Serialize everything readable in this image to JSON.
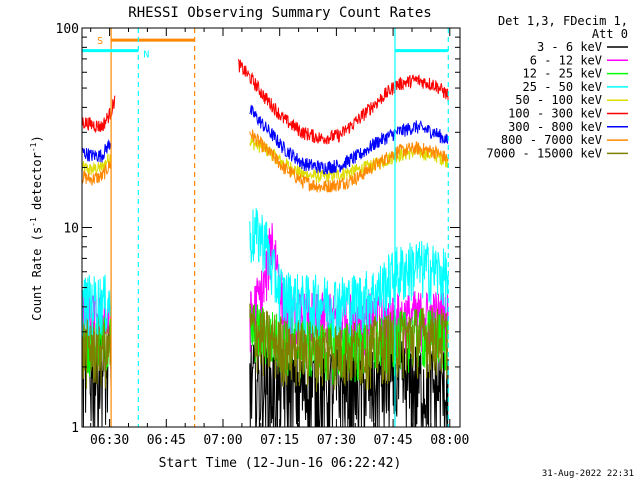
{
  "chart_data": {
    "type": "line",
    "title": "RHESSI Observing Summary Count Rates",
    "xlabel": "Start Time (12-Jun-16 06:22:42)",
    "ylabel": "Count Rate (s⁻¹ detector⁻¹)",
    "ylabel_main": "Count Rate (s",
    "ylabel_sup1": "-1",
    "ylabel_mid": " detector",
    "ylabel_sup2": "-1",
    "ylabel_end": ")",
    "yscale": "log",
    "ylim": [
      1,
      100
    ],
    "xlim_minutes": [
      22.7,
      122.7
    ],
    "x_ticks": [
      {
        "min": 30,
        "label": "06:30"
      },
      {
        "min": 45,
        "label": "06:45"
      },
      {
        "min": 60,
        "label": "07:00"
      },
      {
        "min": 75,
        "label": "07:15"
      },
      {
        "min": 90,
        "label": "07:30"
      },
      {
        "min": 105,
        "label": "07:45"
      },
      {
        "min": 120,
        "label": "08:00"
      }
    ],
    "y_ticks": [
      {
        "value": 1,
        "label": "1"
      },
      {
        "value": 10,
        "label": "10"
      },
      {
        "value": 100,
        "label": "100"
      }
    ],
    "legend_header": [
      "Det 1,3, FDecim 1,",
      "Att 0"
    ],
    "legend_placement": "right",
    "series": [
      {
        "name": "3 - 6 keV",
        "color": "#000000",
        "x": [
          22.7,
          30.4,
          37.6,
          61.6,
          67,
          72,
          76,
          81,
          86,
          91,
          96,
          101,
          106,
          111,
          116,
          119.6
        ],
        "y": [
          2,
          2,
          null,
          null,
          1.7,
          1.6,
          1.6,
          1.6,
          1.6,
          1.6,
          1.6,
          1.7,
          1.7,
          1.7,
          1.6,
          1.6
        ]
      },
      {
        "name": "6 - 12 keV",
        "color": "#ff00ff",
        "x": [
          22.7,
          30.4,
          37.6,
          61.6,
          67,
          71,
          73,
          76,
          81,
          86,
          91,
          96,
          101,
          106,
          111,
          116,
          119.6
        ],
        "y": [
          3.5,
          3.5,
          null,
          null,
          3.5,
          5,
          9,
          3.5,
          3.5,
          3.5,
          3.5,
          3.5,
          3.5,
          3.5,
          3.6,
          3.6,
          3.6
        ]
      },
      {
        "name": "12 - 25 keV",
        "color": "#00ff00",
        "x": [
          22.7,
          30.4,
          37.6,
          61.6,
          67,
          71,
          76,
          81,
          86,
          91,
          96,
          101,
          106,
          111,
          116,
          119.6
        ],
        "y": [
          2.7,
          2.7,
          null,
          null,
          3.2,
          3.0,
          2.7,
          2.6,
          2.5,
          2.5,
          2.5,
          2.6,
          2.8,
          2.9,
          2.9,
          2.8
        ]
      },
      {
        "name": "25 - 50 keV",
        "color": "#00ffff",
        "x": [
          22.7,
          30.4,
          37.6,
          61.6,
          67,
          71,
          73,
          76,
          81,
          86,
          91,
          96,
          101,
          106,
          111,
          116,
          119.6
        ],
        "y": [
          4.3,
          4.3,
          null,
          null,
          9.5,
          9,
          6,
          4.6,
          4.3,
          4.3,
          4.3,
          4.4,
          4.8,
          6,
          6.5,
          6.2,
          5.6
        ]
      },
      {
        "name": "50 - 100 keV",
        "color": "#dddd00",
        "x": [
          22.7,
          25,
          28,
          30.4,
          37.6,
          61.6,
          67,
          71,
          76,
          81,
          86,
          91,
          96,
          101,
          106,
          111,
          116,
          119.6
        ],
        "y": [
          20,
          19.5,
          20,
          23,
          null,
          null,
          27,
          25,
          21,
          18.5,
          18,
          18.5,
          19.5,
          21,
          23,
          24,
          23,
          21.5
        ]
      },
      {
        "name": "100 - 300 keV",
        "color": "#ff0000",
        "x": [
          22.7,
          25,
          28,
          30.4,
          31.5,
          37.6,
          61.6,
          64,
          67,
          71,
          76,
          81,
          86,
          91,
          96,
          101,
          106,
          111,
          116,
          119.6
        ],
        "y": [
          34,
          33,
          32,
          38,
          45,
          null,
          null,
          66,
          57,
          45,
          35,
          30,
          28,
          29,
          35,
          43,
          52,
          55,
          52,
          46
        ]
      },
      {
        "name": "300 - 800 keV",
        "color": "#0000ff",
        "x": [
          22.7,
          25,
          28,
          30.4,
          37.6,
          61.6,
          67,
          71,
          76,
          81,
          86,
          91,
          96,
          101,
          106,
          111,
          116,
          119.6
        ],
        "y": [
          24,
          23,
          23,
          27,
          null,
          null,
          39,
          32,
          25,
          21,
          20,
          20.5,
          23,
          27,
          30,
          32,
          30,
          27
        ]
      },
      {
        "name": "800 - 7000 keV",
        "color": "#ff8800",
        "x": [
          22.7,
          25,
          28,
          30.4,
          37.6,
          61.6,
          67,
          71,
          76,
          81,
          86,
          91,
          96,
          101,
          106,
          111,
          116,
          119.6
        ],
        "y": [
          18,
          17.5,
          18,
          21,
          null,
          null,
          30,
          25,
          20,
          17,
          16,
          16.5,
          18,
          21,
          24,
          25,
          24,
          22
        ]
      },
      {
        "name": "7000 - 15000 keV",
        "color": "#808000",
        "x": [
          22.7,
          30.4,
          37.6,
          61.6,
          67,
          71,
          76,
          81,
          86,
          91,
          96,
          101,
          106,
          111,
          116,
          119.6
        ],
        "y": [
          2.5,
          2.5,
          null,
          null,
          3.2,
          2.8,
          2.6,
          2.5,
          2.5,
          2.5,
          2.5,
          2.6,
          2.8,
          2.9,
          2.9,
          2.8
        ]
      }
    ],
    "annotations": [
      {
        "label": "S",
        "color": "#ff8800",
        "x_minutes": [
          30.4,
          52.5
        ],
        "level": 87,
        "vlines_minutes": [
          30.4,
          52.5
        ],
        "vline_style": [
          "solid",
          "dashed"
        ]
      },
      {
        "label": "N",
        "color": "#00ffff",
        "x_minutes": [
          22.7,
          37.6
        ],
        "level": 77,
        "vlines_minutes": [
          37.6
        ],
        "vline_style": [
          "dashed"
        ]
      },
      {
        "label": "",
        "color": "#00ffff",
        "x_minutes": [
          105.5,
          119.6
        ],
        "level": 77,
        "vlines_minutes": [
          105.5,
          119.6
        ],
        "vline_style": [
          "solid",
          "dashed"
        ]
      }
    ]
  },
  "footer_timestamp": "31-Aug-2022 22:31",
  "colors": {
    "background": "#ffffff",
    "axis": "#000000"
  }
}
